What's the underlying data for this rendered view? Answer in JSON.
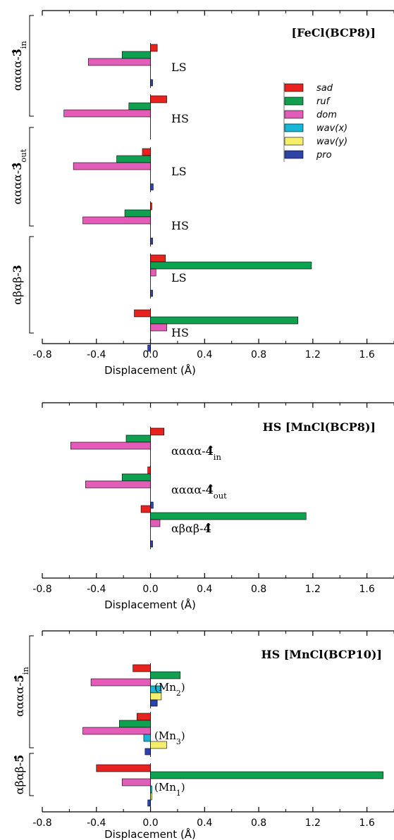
{
  "colors": {
    "sad": "#e8231f",
    "ruf": "#0ea14f",
    "dom": "#e25db8",
    "wavx": "#18b5d4",
    "wavy": "#f4ee6c",
    "pro": "#2b44a6"
  },
  "legend": [
    {
      "key": "sad",
      "label": "sad"
    },
    {
      "key": "ruf",
      "label": "ruf"
    },
    {
      "key": "dom",
      "label": "dom"
    },
    {
      "key": "wavx",
      "label": "wav(x)"
    },
    {
      "key": "wavy",
      "label": "wav(y)"
    },
    {
      "key": "pro",
      "label": "pro"
    }
  ],
  "chart_data": [
    {
      "type": "bar",
      "orientation": "horizontal",
      "title": "[FeCl(BCP8)]",
      "xlabel": "Displacement (Å)",
      "xlim": [
        -0.8,
        1.8
      ],
      "xticks": [
        "-0.8",
        "-0.4",
        "0.0",
        "0.4",
        "0.8",
        "1.2",
        "1.6"
      ],
      "series_order": [
        "sad",
        "ruf",
        "dom",
        "wavx",
        "wavy",
        "pro"
      ],
      "groups": [
        {
          "label": "αααα-3̂in",
          "entries": [
            {
              "label": "LS",
              "values": {
                "sad": 0.05,
                "ruf": -0.21,
                "dom": -0.46,
                "wavx": 0.0,
                "wavy": 0.0,
                "pro": 0.01
              }
            },
            {
              "label": "HS",
              "values": {
                "sad": 0.12,
                "ruf": -0.16,
                "dom": -0.64,
                "wavx": 0.0,
                "wavy": 0.0,
                "pro": 0.0
              }
            }
          ]
        },
        {
          "label": "αααα-3̂out",
          "entries": [
            {
              "label": "LS",
              "values": {
                "sad": -0.06,
                "ruf": -0.25,
                "dom": -0.57,
                "wavx": 0.0,
                "wavy": 0.0,
                "pro": 0.02
              }
            },
            {
              "label": "HS",
              "values": {
                "sad": 0.01,
                "ruf": -0.19,
                "dom": -0.5,
                "wavx": 0.0,
                "wavy": 0.0,
                "pro": 0.01
              }
            }
          ]
        },
        {
          "label": "αβαβ-3",
          "entries": [
            {
              "label": "LS",
              "values": {
                "sad": 0.11,
                "ruf": 1.19,
                "dom": 0.04,
                "wavx": 0.0,
                "wavy": 0.0,
                "pro": 0.01
              }
            },
            {
              "label": "HS",
              "values": {
                "sad": -0.12,
                "ruf": 1.09,
                "dom": 0.12,
                "wavx": 0.0,
                "wavy": 0.0,
                "pro": -0.02
              }
            }
          ]
        }
      ]
    },
    {
      "type": "bar",
      "orientation": "horizontal",
      "title": "HS [MnCl(BCP8)]",
      "xlabel": "Displacement (Å)",
      "xlim": [
        -0.8,
        1.8
      ],
      "xticks": [
        "-0.8",
        "-0.4",
        "0.0",
        "0.4",
        "0.8",
        "1.2",
        "1.6"
      ],
      "series_order": [
        "sad",
        "ruf",
        "dom",
        "wavx",
        "wavy",
        "pro"
      ],
      "groups": [
        {
          "label": "",
          "entries": [
            {
              "label": "αααα-4̂in",
              "values": {
                "sad": 0.1,
                "ruf": -0.18,
                "dom": -0.59,
                "wavx": 0.0,
                "wavy": 0.0,
                "pro": 0.0
              }
            },
            {
              "label": "αααα-4̂out",
              "values": {
                "sad": -0.02,
                "ruf": -0.21,
                "dom": -0.48,
                "wavx": 0.0,
                "wavy": 0.0,
                "pro": 0.02
              }
            },
            {
              "label": "αβαβ-4̂",
              "values": {
                "sad": -0.07,
                "ruf": 1.15,
                "dom": 0.07,
                "wavx": 0.0,
                "wavy": 0.0,
                "pro": 0.01
              }
            }
          ]
        }
      ]
    },
    {
      "type": "bar",
      "orientation": "horizontal",
      "title": "HS [MnCl(BCP10)]",
      "xlabel": "Displacement (Å)",
      "xlim": [
        -0.8,
        1.8
      ],
      "xticks": [
        "-0.8",
        "-0.4",
        "0.0",
        "0.4",
        "0.8",
        "1.2",
        "1.6"
      ],
      "series_order": [
        "sad",
        "ruf",
        "dom",
        "wavx",
        "wavy",
        "pro"
      ],
      "groups": [
        {
          "label": "αααα-5̂in",
          "entries": [
            {
              "label": "(Mn2)",
              "values": {
                "sad": -0.13,
                "ruf": 0.22,
                "dom": -0.44,
                "wavx": 0.08,
                "wavy": 0.08,
                "pro": 0.05
              }
            },
            {
              "label": "(Mn3)",
              "values": {
                "sad": -0.1,
                "ruf": -0.23,
                "dom": -0.5,
                "wavx": -0.05,
                "wavy": 0.12,
                "pro": -0.04
              }
            }
          ]
        },
        {
          "label": "αβαβ-5̂",
          "entries": [
            {
              "label": "(Mn1)",
              "values": {
                "sad": -0.4,
                "ruf": 1.72,
                "dom": -0.21,
                "wavx": 0.01,
                "wavy": 0.01,
                "pro": -0.02
              }
            }
          ]
        }
      ]
    }
  ]
}
